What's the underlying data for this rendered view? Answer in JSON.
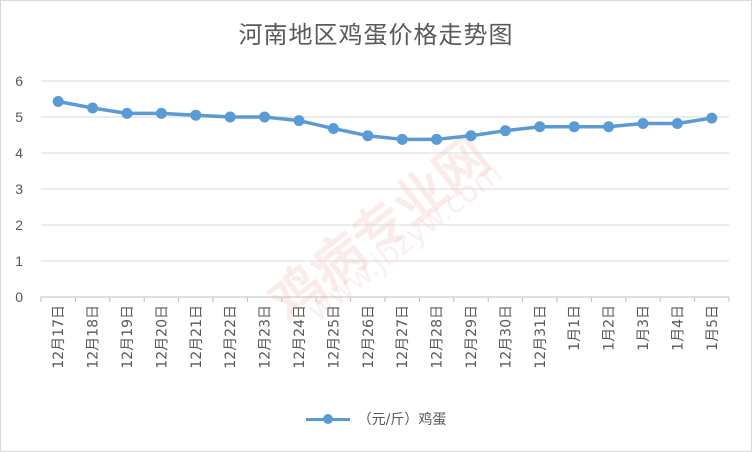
{
  "chart_data": {
    "type": "line",
    "title": "河南地区鸡蛋价格走势图",
    "categories": [
      "12月17日",
      "12月18日",
      "12月19日",
      "12月20日",
      "12月21日",
      "12月22日",
      "12月23日",
      "12月24日",
      "12月25日",
      "12月26日",
      "12月27日",
      "12月28日",
      "12月29日",
      "12月30日",
      "12月31日",
      "1月1日",
      "1月2日",
      "1月3日",
      "1月4日",
      "1月5日"
    ],
    "series": [
      {
        "name": "（元/斤）鸡蛋",
        "color": "#5b9bd5",
        "values": [
          5.43,
          5.25,
          5.1,
          5.1,
          5.05,
          5.0,
          5.0,
          4.9,
          4.68,
          4.48,
          4.38,
          4.38,
          4.48,
          4.62,
          4.73,
          4.73,
          4.73,
          4.82,
          4.82,
          4.97
        ]
      }
    ],
    "yticks": [
      "0",
      "1",
      "2",
      "3",
      "4",
      "5",
      "6"
    ],
    "ylim": [
      0,
      6
    ],
    "grid": true,
    "legend_position": "bottom"
  },
  "watermark": {
    "main": "鸡病专业网",
    "url": "www.jbzyw.com"
  }
}
